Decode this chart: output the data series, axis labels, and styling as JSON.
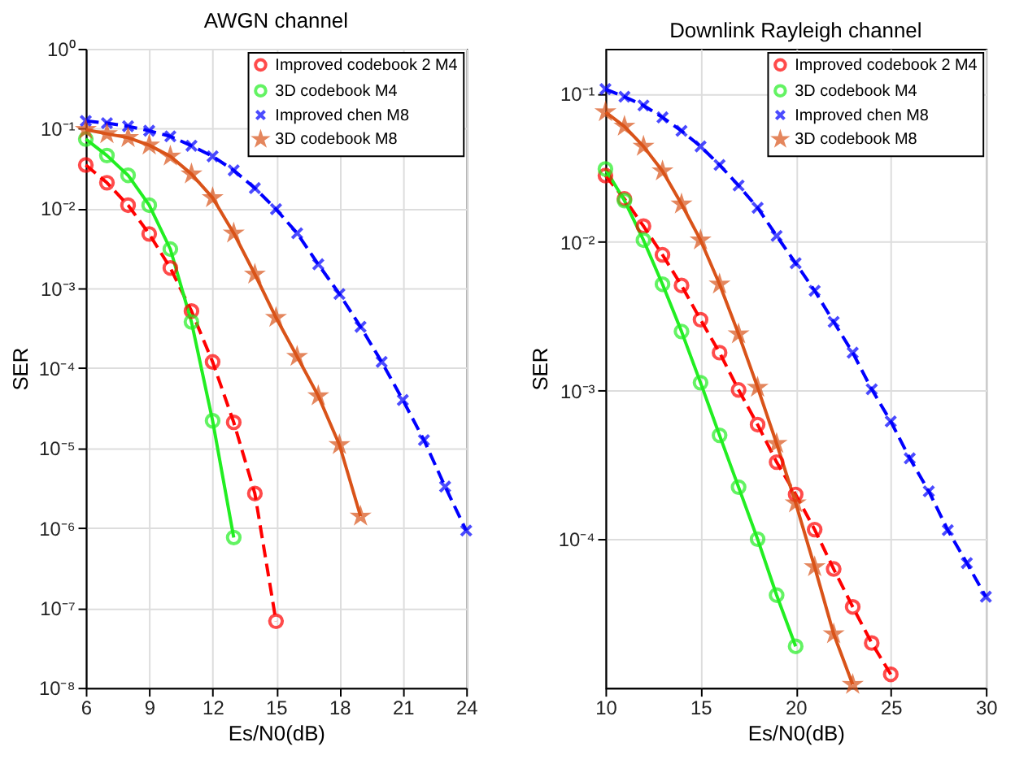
{
  "chart_data": [
    {
      "type": "line",
      "title": "AWGN channel",
      "xlabel": "Es/N0(dB)",
      "ylabel": "SER",
      "log": "y",
      "grid": true,
      "legend": "top right",
      "xlim": [
        6,
        24
      ],
      "xticks": [
        6,
        9,
        12,
        15,
        18,
        21,
        24
      ],
      "ylim": [
        1e-08,
        1
      ],
      "yticks": [
        {
          "value": 1e-08,
          "label": "10⁻⁸"
        },
        {
          "value": 1e-07,
          "label": "10⁻⁷"
        },
        {
          "value": 1e-06,
          "label": "10⁻⁶"
        },
        {
          "value": 1e-05,
          "label": "10⁻⁵"
        },
        {
          "value": 0.0001,
          "label": "10⁻⁴"
        },
        {
          "value": 0.001,
          "label": "10⁻³"
        },
        {
          "value": 0.01,
          "label": "10⁻²"
        },
        {
          "value": 0.1,
          "label": "10⁻¹"
        },
        {
          "value": 1,
          "label": "10⁰"
        }
      ],
      "series": [
        {
          "name": "Improved codebook 2 M4",
          "color": "#ff0000",
          "marker": "circle",
          "line_style": "dashed",
          "x": [
            6,
            7,
            8,
            9,
            10,
            11,
            12,
            13,
            14,
            15
          ],
          "values": [
            0.035,
            0.021,
            0.011,
            0.0048,
            0.0018,
            0.00052,
            0.00012,
            2.1e-05,
            2.7e-06,
            6.8e-08
          ]
        },
        {
          "name": "3D codebook M4",
          "color": "#22ee22",
          "marker": "circle",
          "line_style": "solid",
          "x": [
            6,
            7,
            8,
            9,
            10,
            11,
            12,
            13
          ],
          "values": [
            0.074,
            0.046,
            0.026,
            0.011,
            0.0031,
            0.00038,
            2.2e-05,
            7.6e-07
          ]
        },
        {
          "name": "Improved chen M8",
          "color": "#0000ff",
          "marker": "cross",
          "line_style": "dashed",
          "x": [
            6,
            7,
            8,
            9,
            10,
            11,
            12,
            13,
            14,
            15,
            16,
            17,
            18,
            19,
            20,
            21,
            22,
            23,
            24
          ],
          "values": [
            0.125,
            0.117,
            0.107,
            0.094,
            0.08,
            0.061,
            0.045,
            0.03,
            0.018,
            0.0098,
            0.0049,
            0.002,
            0.00085,
            0.00033,
            0.00012,
            4e-05,
            1.26e-05,
            3.3e-06,
            9.3e-07
          ]
        },
        {
          "name": "3D codebook M8",
          "color": "#d95319",
          "marker": "star",
          "line_style": "solid",
          "x": [
            6,
            7,
            8,
            9,
            10,
            11,
            12,
            13,
            14,
            15,
            16,
            17,
            18,
            19
          ],
          "values": [
            0.097,
            0.086,
            0.077,
            0.062,
            0.045,
            0.027,
            0.0136,
            0.0049,
            0.0015,
            0.00043,
            0.00014,
            4.5e-05,
            1.1e-05,
            1.4e-06
          ]
        }
      ]
    },
    {
      "type": "line",
      "title": "Downlink Rayleigh channel",
      "xlabel": "Es/N0(dB)",
      "ylabel": "SER",
      "log": "y",
      "grid": true,
      "legend": "top right",
      "xlim": [
        10,
        30
      ],
      "xticks": [
        10,
        15,
        20,
        25,
        30
      ],
      "ylim": [
        1e-05,
        0.2
      ],
      "yticks": [
        {
          "value": 0.0001,
          "label": "10⁻⁴"
        },
        {
          "value": 0.001,
          "label": "10⁻³"
        },
        {
          "value": 0.01,
          "label": "10⁻²"
        },
        {
          "value": 0.1,
          "label": "10⁻¹"
        }
      ],
      "series": [
        {
          "name": "Improved codebook 2 M4",
          "color": "#ff0000",
          "marker": "circle",
          "line_style": "dashed",
          "x": [
            10,
            11,
            12,
            13,
            14,
            15,
            16,
            17,
            18,
            19,
            20,
            21,
            22,
            23,
            24,
            25
          ],
          "values": [
            0.028,
            0.0195,
            0.0128,
            0.0082,
            0.0051,
            0.003,
            0.0018,
            0.00101,
            0.00059,
            0.00033,
            0.0002,
            0.000116,
            6.3e-05,
            3.5e-05,
            2e-05,
            1.23e-05
          ]
        },
        {
          "name": "3D codebook M4",
          "color": "#22ee22",
          "marker": "circle",
          "line_style": "solid",
          "x": [
            10,
            11,
            12,
            13,
            14,
            15,
            16,
            17,
            18,
            19,
            20
          ],
          "values": [
            0.031,
            0.019,
            0.0103,
            0.0052,
            0.0025,
            0.00113,
            0.0005,
            0.000224,
            0.0001,
            4.2e-05,
            1.9e-05
          ]
        },
        {
          "name": "Improved chen M8",
          "color": "#0000ff",
          "marker": "cross",
          "line_style": "dashed",
          "x": [
            10,
            11,
            12,
            13,
            14,
            15,
            16,
            17,
            18,
            19,
            20,
            21,
            22,
            23,
            24,
            25,
            26,
            27,
            28,
            29,
            30
          ],
          "values": [
            0.107,
            0.095,
            0.083,
            0.069,
            0.056,
            0.044,
            0.033,
            0.024,
            0.017,
            0.011,
            0.0072,
            0.0047,
            0.0029,
            0.0018,
            0.00102,
            0.00062,
            0.00035,
            0.00021,
            0.000115,
            6.9e-05,
            4.1e-05
          ]
        },
        {
          "name": "3D codebook M8",
          "color": "#d95319",
          "marker": "star",
          "line_style": "solid",
          "x": [
            10,
            11,
            12,
            13,
            14,
            15,
            16,
            17,
            18,
            19,
            20,
            21,
            22,
            23
          ],
          "values": [
            0.075,
            0.06,
            0.044,
            0.03,
            0.018,
            0.0103,
            0.0052,
            0.0024,
            0.00105,
            0.00044,
            0.000175,
            6.5e-05,
            2.3e-05,
            1.05e-05
          ]
        }
      ]
    }
  ]
}
